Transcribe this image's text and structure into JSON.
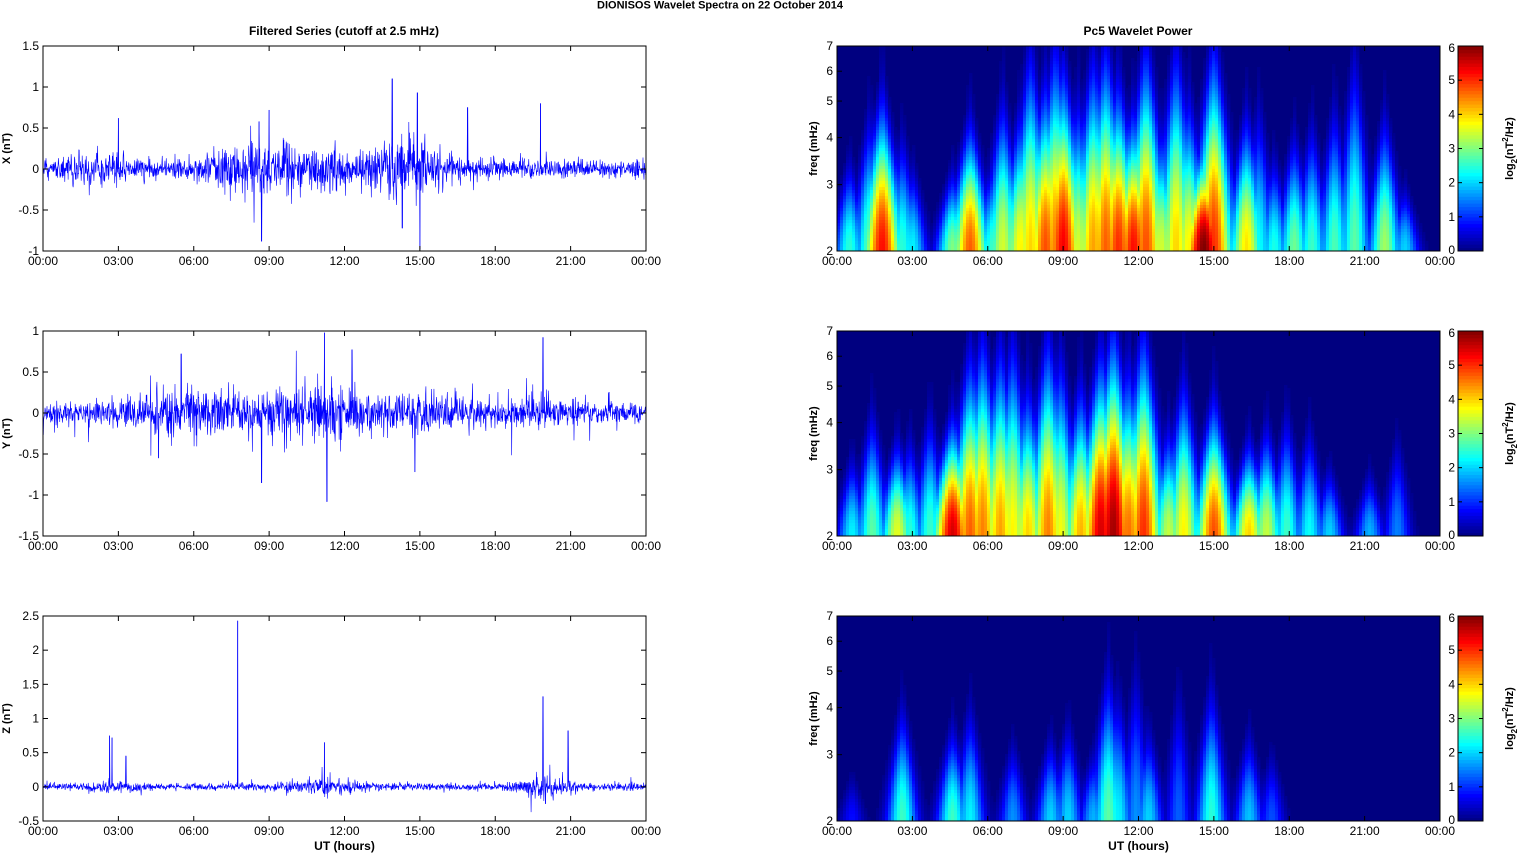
{
  "figure": {
    "title": "DIONISOS Wavelet Spectra on 22 October   2014",
    "left_title": "Filtered Series (cutoff at 2.5 mHz)",
    "right_title": "Pc5 Wavelet Power",
    "xlabel": "UT (hours)"
  },
  "chart_data": [
    {
      "type": "line",
      "panel": "X",
      "ylabel": "X (nT)",
      "xlabel": "",
      "x_ticks": [
        "00:00",
        "03:00",
        "06:00",
        "09:00",
        "12:00",
        "15:00",
        "18:00",
        "21:00",
        "00:00"
      ],
      "xlim_hours": [
        0,
        24
      ],
      "ylim": [
        -1,
        1.5
      ],
      "y_ticks": [
        "-1",
        "-0.5",
        "0",
        "0.5",
        "1",
        "1.5"
      ],
      "y_tick_values": [
        -1,
        -0.5,
        0,
        0.5,
        1,
        1.5
      ],
      "color": "#0000ff",
      "noise_profile": {
        "base_amplitude": 0.1,
        "bursts": [
          {
            "center_h": 2.0,
            "width_h": 1.2,
            "amp": 0.12
          },
          {
            "center_h": 8.8,
            "width_h": 2.2,
            "amp": 0.2
          },
          {
            "center_h": 14.6,
            "width_h": 1.5,
            "amp": 0.25
          },
          {
            "center_h": 11.5,
            "width_h": 1.5,
            "amp": 0.12
          }
        ],
        "spikes": [
          {
            "hour": 8.6,
            "value": 0.58
          },
          {
            "hour": 9.0,
            "value": 0.72
          },
          {
            "hour": 8.7,
            "value": -0.88
          },
          {
            "hour": 13.9,
            "value": 1.1
          },
          {
            "hour": 14.9,
            "value": 0.93
          },
          {
            "hour": 15.0,
            "value": -0.98
          },
          {
            "hour": 16.9,
            "value": 0.75
          },
          {
            "hour": 19.8,
            "value": 0.8
          },
          {
            "hour": 14.3,
            "value": -0.72
          },
          {
            "hour": 3.0,
            "value": 0.62
          }
        ]
      }
    },
    {
      "type": "line",
      "panel": "Y",
      "ylabel": "Y (nT)",
      "xlabel": "",
      "x_ticks": [
        "00:00",
        "03:00",
        "06:00",
        "09:00",
        "12:00",
        "15:00",
        "18:00",
        "21:00",
        "00:00"
      ],
      "xlim_hours": [
        0,
        24
      ],
      "ylim": [
        -1.5,
        1
      ],
      "y_ticks": [
        "-1.5",
        "-1",
        "-0.5",
        "0",
        "0.5",
        "1"
      ],
      "y_tick_values": [
        -1.5,
        -1,
        -0.5,
        0,
        0.5,
        1
      ],
      "color": "#0000ff",
      "noise_profile": {
        "base_amplitude": 0.11,
        "bursts": [
          {
            "center_h": 6.0,
            "width_h": 2.5,
            "amp": 0.17
          },
          {
            "center_h": 11.0,
            "width_h": 2.0,
            "amp": 0.22
          },
          {
            "center_h": 15.5,
            "width_h": 2.5,
            "amp": 0.12
          },
          {
            "center_h": 19.8,
            "width_h": 1.0,
            "amp": 0.1
          }
        ],
        "spikes": [
          {
            "hour": 11.2,
            "value": 0.98
          },
          {
            "hour": 11.3,
            "value": -1.08
          },
          {
            "hour": 8.7,
            "value": -0.85
          },
          {
            "hour": 5.5,
            "value": 0.72
          },
          {
            "hour": 19.9,
            "value": 0.92
          },
          {
            "hour": 14.8,
            "value": -0.72
          },
          {
            "hour": 4.6,
            "value": -0.55
          },
          {
            "hour": 12.3,
            "value": 0.77
          }
        ]
      }
    },
    {
      "type": "line",
      "panel": "Z",
      "ylabel": "Z (nT)",
      "xlabel": "UT (hours)",
      "x_ticks": [
        "00:00",
        "03:00",
        "06:00",
        "09:00",
        "12:00",
        "15:00",
        "18:00",
        "21:00",
        "00:00"
      ],
      "xlim_hours": [
        0,
        24
      ],
      "ylim": [
        -0.5,
        2.5
      ],
      "y_ticks": [
        "-0.5",
        "0",
        "0.5",
        "1",
        "1.5",
        "2",
        "2.5"
      ],
      "y_tick_values": [
        -0.5,
        0,
        0.5,
        1,
        1.5,
        2,
        2.5
      ],
      "color": "#0000ff",
      "noise_profile": {
        "base_amplitude": 0.045,
        "bursts": [
          {
            "center_h": 2.8,
            "width_h": 0.8,
            "amp": 0.05
          },
          {
            "center_h": 11.2,
            "width_h": 1.5,
            "amp": 0.06
          },
          {
            "center_h": 20.0,
            "width_h": 1.0,
            "amp": 0.12
          }
        ],
        "spikes": [
          {
            "hour": 7.75,
            "value": 2.43
          },
          {
            "hour": 2.65,
            "value": 0.75
          },
          {
            "hour": 2.75,
            "value": 0.72
          },
          {
            "hour": 11.2,
            "value": 0.65
          },
          {
            "hour": 19.9,
            "value": 1.32
          },
          {
            "hour": 20.9,
            "value": 0.82
          },
          {
            "hour": 20.0,
            "value": -0.25
          },
          {
            "hour": 3.3,
            "value": 0.45
          }
        ]
      }
    },
    {
      "type": "heatmap",
      "panel": "X",
      "title": "Pc5 Wavelet Power",
      "ylabel": "freq (mHz)",
      "colorbar_label": "log2(nT2/Hz)",
      "x_ticks": [
        "00:00",
        "03:00",
        "06:00",
        "09:00",
        "12:00",
        "15:00",
        "18:00",
        "21:00",
        "00:00"
      ],
      "xlim_hours": [
        0,
        24
      ],
      "yscale": "log",
      "ylim_mHz": [
        2,
        7
      ],
      "y_ticks": [
        "2",
        "3",
        "4",
        "5",
        "6",
        "7"
      ],
      "clim": [
        0,
        6
      ],
      "colorbar_ticks": [
        "0",
        "1",
        "2",
        "3",
        "4",
        "5",
        "6"
      ],
      "blobs": [
        {
          "hour": 0.5,
          "power": 2.5,
          "top_mHz": 3.4
        },
        {
          "hour": 1.3,
          "power": 2.8,
          "top_mHz": 4.5
        },
        {
          "hour": 1.8,
          "power": 5.2,
          "top_mHz": 5.0
        },
        {
          "hour": 2.6,
          "power": 2.5,
          "top_mHz": 4.0
        },
        {
          "hour": 3.0,
          "power": 2.2,
          "top_mHz": 3.3
        },
        {
          "hour": 4.6,
          "power": 3.0,
          "top_mHz": 3.2
        },
        {
          "hour": 5.3,
          "power": 4.7,
          "top_mHz": 4.3
        },
        {
          "hour": 6.2,
          "power": 2.6,
          "top_mHz": 3.4
        },
        {
          "hour": 6.6,
          "power": 3.5,
          "top_mHz": 5.0
        },
        {
          "hour": 7.3,
          "power": 3.8,
          "top_mHz": 4.6
        },
        {
          "hour": 7.7,
          "power": 4.0,
          "top_mHz": 6.8
        },
        {
          "hour": 8.3,
          "power": 4.8,
          "top_mHz": 5.5
        },
        {
          "hour": 8.7,
          "power": 4.5,
          "top_mHz": 7.0
        },
        {
          "hour": 9.0,
          "power": 5.3,
          "top_mHz": 6.0
        },
        {
          "hour": 9.6,
          "power": 3.5,
          "top_mHz": 5.0
        },
        {
          "hour": 10.2,
          "power": 4.3,
          "top_mHz": 6.5
        },
        {
          "hour": 10.7,
          "power": 4.7,
          "top_mHz": 7.0
        },
        {
          "hour": 11.2,
          "power": 5.0,
          "top_mHz": 5.5
        },
        {
          "hour": 11.8,
          "power": 5.2,
          "top_mHz": 4.6
        },
        {
          "hour": 12.3,
          "power": 4.8,
          "top_mHz": 7.0
        },
        {
          "hour": 12.9,
          "power": 3.5,
          "top_mHz": 4.2
        },
        {
          "hour": 13.5,
          "power": 4.0,
          "top_mHz": 7.0
        },
        {
          "hour": 14.0,
          "power": 3.8,
          "top_mHz": 5.0
        },
        {
          "hour": 14.6,
          "power": 6.0,
          "top_mHz": 3.8
        },
        {
          "hour": 15.0,
          "power": 5.0,
          "top_mHz": 7.0
        },
        {
          "hour": 16.3,
          "power": 3.9,
          "top_mHz": 4.5
        },
        {
          "hour": 16.8,
          "power": 2.3,
          "top_mHz": 4.8
        },
        {
          "hour": 17.4,
          "power": 2.4,
          "top_mHz": 3.5
        },
        {
          "hour": 18.2,
          "power": 2.9,
          "top_mHz": 4.0
        },
        {
          "hour": 18.9,
          "power": 2.6,
          "top_mHz": 4.3
        },
        {
          "hour": 19.8,
          "power": 2.7,
          "top_mHz": 4.8
        },
        {
          "hour": 20.6,
          "power": 2.8,
          "top_mHz": 6.5
        },
        {
          "hour": 21.8,
          "power": 3.2,
          "top_mHz": 4.5
        },
        {
          "hour": 22.6,
          "power": 2.0,
          "top_mHz": 2.9
        }
      ]
    },
    {
      "type": "heatmap",
      "panel": "Y",
      "ylabel": "freq (mHz)",
      "colorbar_label": "log2(nT2/Hz)",
      "x_ticks": [
        "00:00",
        "03:00",
        "06:00",
        "09:00",
        "12:00",
        "15:00",
        "18:00",
        "21:00",
        "00:00"
      ],
      "xlim_hours": [
        0,
        24
      ],
      "yscale": "log",
      "ylim_mHz": [
        2,
        7
      ],
      "y_ticks": [
        "2",
        "3",
        "4",
        "5",
        "6",
        "7"
      ],
      "clim": [
        0,
        6
      ],
      "colorbar_ticks": [
        "0",
        "1",
        "2",
        "3",
        "4",
        "5",
        "6"
      ],
      "blobs": [
        {
          "hour": 0.6,
          "power": 2.2,
          "top_mHz": 3.2
        },
        {
          "hour": 1.4,
          "power": 2.8,
          "top_mHz": 4.2
        },
        {
          "hour": 2.4,
          "power": 3.6,
          "top_mHz": 3.5
        },
        {
          "hour": 2.9,
          "power": 2.5,
          "top_mHz": 3.6
        },
        {
          "hour": 3.7,
          "power": 2.6,
          "top_mHz": 4.2
        },
        {
          "hour": 4.6,
          "power": 5.5,
          "top_mHz": 4.0
        },
        {
          "hour": 5.3,
          "power": 4.7,
          "top_mHz": 6.0
        },
        {
          "hour": 5.8,
          "power": 4.5,
          "top_mHz": 6.8
        },
        {
          "hour": 6.5,
          "power": 4.3,
          "top_mHz": 6.4
        },
        {
          "hour": 7.0,
          "power": 3.8,
          "top_mHz": 6.8
        },
        {
          "hour": 7.6,
          "power": 4.0,
          "top_mHz": 5.0
        },
        {
          "hour": 8.4,
          "power": 4.5,
          "top_mHz": 6.8
        },
        {
          "hour": 8.9,
          "power": 3.7,
          "top_mHz": 6.0
        },
        {
          "hour": 9.7,
          "power": 4.2,
          "top_mHz": 5.0
        },
        {
          "hour": 10.5,
          "power": 5.5,
          "top_mHz": 6.0
        },
        {
          "hour": 11.0,
          "power": 5.8,
          "top_mHz": 7.0
        },
        {
          "hour": 11.6,
          "power": 4.6,
          "top_mHz": 5.5
        },
        {
          "hour": 12.2,
          "power": 5.0,
          "top_mHz": 7.0
        },
        {
          "hour": 13.2,
          "power": 3.4,
          "top_mHz": 3.8
        },
        {
          "hour": 13.8,
          "power": 3.8,
          "top_mHz": 5.2
        },
        {
          "hour": 15.0,
          "power": 4.8,
          "top_mHz": 4.5
        },
        {
          "hour": 16.4,
          "power": 4.0,
          "top_mHz": 3.5
        },
        {
          "hour": 17.1,
          "power": 3.4,
          "top_mHz": 3.8
        },
        {
          "hour": 17.9,
          "power": 2.6,
          "top_mHz": 4.1
        },
        {
          "hour": 18.8,
          "power": 2.3,
          "top_mHz": 3.8
        },
        {
          "hour": 19.6,
          "power": 2.0,
          "top_mHz": 3.0
        },
        {
          "hour": 21.2,
          "power": 1.8,
          "top_mHz": 2.9
        },
        {
          "hour": 22.3,
          "power": 1.5,
          "top_mHz": 3.6
        }
      ]
    },
    {
      "type": "heatmap",
      "panel": "Z",
      "ylabel": "freq (mHz)",
      "xlabel": "UT (hours)",
      "colorbar_label": "log2(nT2/Hz)",
      "x_ticks": [
        "00:00",
        "03:00",
        "06:00",
        "09:00",
        "12:00",
        "15:00",
        "18:00",
        "21:00",
        "00:00"
      ],
      "xlim_hours": [
        0,
        24
      ],
      "yscale": "log",
      "ylim_mHz": [
        2,
        7
      ],
      "y_ticks": [
        "2",
        "3",
        "4",
        "5",
        "6",
        "7"
      ],
      "clim": [
        0,
        6
      ],
      "colorbar_ticks": [
        "0",
        "1",
        "2",
        "3",
        "4",
        "5",
        "6"
      ],
      "blobs": [
        {
          "hour": 0.6,
          "power": 0.8,
          "top_mHz": 2.6
        },
        {
          "hour": 2.6,
          "power": 2.6,
          "top_mHz": 4.0
        },
        {
          "hour": 4.6,
          "power": 2.6,
          "top_mHz": 3.5
        },
        {
          "hour": 5.3,
          "power": 2.2,
          "top_mHz": 4.0
        },
        {
          "hour": 7.0,
          "power": 1.6,
          "top_mHz": 3.2
        },
        {
          "hour": 8.5,
          "power": 2.0,
          "top_mHz": 3.3
        },
        {
          "hour": 9.2,
          "power": 2.0,
          "top_mHz": 3.6
        },
        {
          "hour": 10.2,
          "power": 1.8,
          "top_mHz": 3.0
        },
        {
          "hour": 10.8,
          "power": 2.8,
          "top_mHz": 5.0
        },
        {
          "hour": 11.2,
          "power": 2.2,
          "top_mHz": 4.3
        },
        {
          "hour": 11.9,
          "power": 1.6,
          "top_mHz": 5.2
        },
        {
          "hour": 12.4,
          "power": 2.0,
          "top_mHz": 3.5
        },
        {
          "hour": 13.6,
          "power": 1.3,
          "top_mHz": 4.6
        },
        {
          "hour": 14.9,
          "power": 2.5,
          "top_mHz": 4.6
        },
        {
          "hour": 16.4,
          "power": 1.9,
          "top_mHz": 3.4
        },
        {
          "hour": 17.3,
          "power": 1.2,
          "top_mHz": 3.0
        }
      ]
    }
  ]
}
